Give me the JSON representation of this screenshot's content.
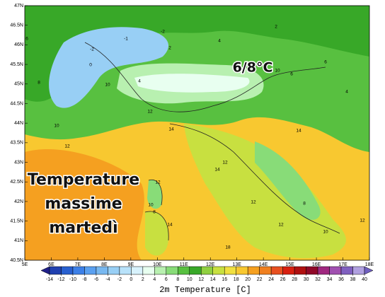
{
  "map": {
    "lon_ticks": [
      {
        "value": 5,
        "label": "5E"
      },
      {
        "value": 6,
        "label": "6E"
      },
      {
        "value": 7,
        "label": "7E"
      },
      {
        "value": 8,
        "label": "8E"
      },
      {
        "value": 9,
        "label": "9E"
      },
      {
        "value": 10,
        "label": "10E"
      },
      {
        "value": 11,
        "label": "11E"
      },
      {
        "value": 12,
        "label": "12E"
      },
      {
        "value": 13,
        "label": "13E"
      },
      {
        "value": 14,
        "label": "14E"
      },
      {
        "value": 15,
        "label": "15E"
      },
      {
        "value": 16,
        "label": "16E"
      },
      {
        "value": 17,
        "label": "17E"
      },
      {
        "value": 18,
        "label": "18E"
      }
    ],
    "lat_ticks": [
      {
        "value": 47,
        "label": "47N"
      },
      {
        "value": 46.5,
        "label": "46.5N"
      },
      {
        "value": 46,
        "label": "46N"
      },
      {
        "value": 45.5,
        "label": "45.5N"
      },
      {
        "value": 45,
        "label": "45N"
      },
      {
        "value": 44.5,
        "label": "44.5N"
      },
      {
        "value": 44,
        "label": "44N"
      },
      {
        "value": 43.5,
        "label": "43.5N"
      },
      {
        "value": 43,
        "label": "43N"
      },
      {
        "value": 42.5,
        "label": "42.5N"
      },
      {
        "value": 42,
        "label": "42N"
      },
      {
        "value": 41.5,
        "label": "41.5N"
      },
      {
        "value": 41,
        "label": "41N"
      },
      {
        "value": 40.5,
        "label": "40.5N"
      }
    ],
    "lonlim": [
      5,
      18
    ],
    "latlim": [
      40.5,
      47
    ],
    "contour_labels": [
      -2,
      -2,
      -1,
      0,
      2,
      2,
      4,
      4,
      6,
      6,
      8,
      10,
      10,
      10,
      12,
      12,
      14,
      14,
      14,
      12,
      12,
      8,
      14,
      18,
      12,
      10,
      12,
      6,
      4,
      8,
      12,
      10
    ],
    "annotation": "6/8°C",
    "overlay_lines": [
      "Temperature",
      "massime",
      "martedì"
    ],
    "colorbar": {
      "ticks": [
        -14,
        -12,
        -10,
        -8,
        -6,
        -4,
        -2,
        0,
        2,
        4,
        6,
        8,
        10,
        12,
        14,
        16,
        18,
        20,
        22,
        24,
        26,
        28,
        30,
        32,
        34,
        36,
        38,
        40
      ],
      "colors": [
        "#20208a",
        "#2040b0",
        "#2860d0",
        "#3c80e8",
        "#5aa0f0",
        "#78b8f0",
        "#98cff5",
        "#b8e2fa",
        "#d8f2fc",
        "#e8fff0",
        "#b8f0b0",
        "#88dc78",
        "#58c040",
        "#38a828",
        "#90d040",
        "#c8e040",
        "#f0e040",
        "#f8c830",
        "#f5a020",
        "#f08020",
        "#e85020",
        "#d82010",
        "#b01010",
        "#900828",
        "#a02880",
        "#a050b0",
        "#8060c0",
        "#b0a0e0",
        "#7060c0"
      ],
      "label": "2m Temperature [C]"
    }
  }
}
